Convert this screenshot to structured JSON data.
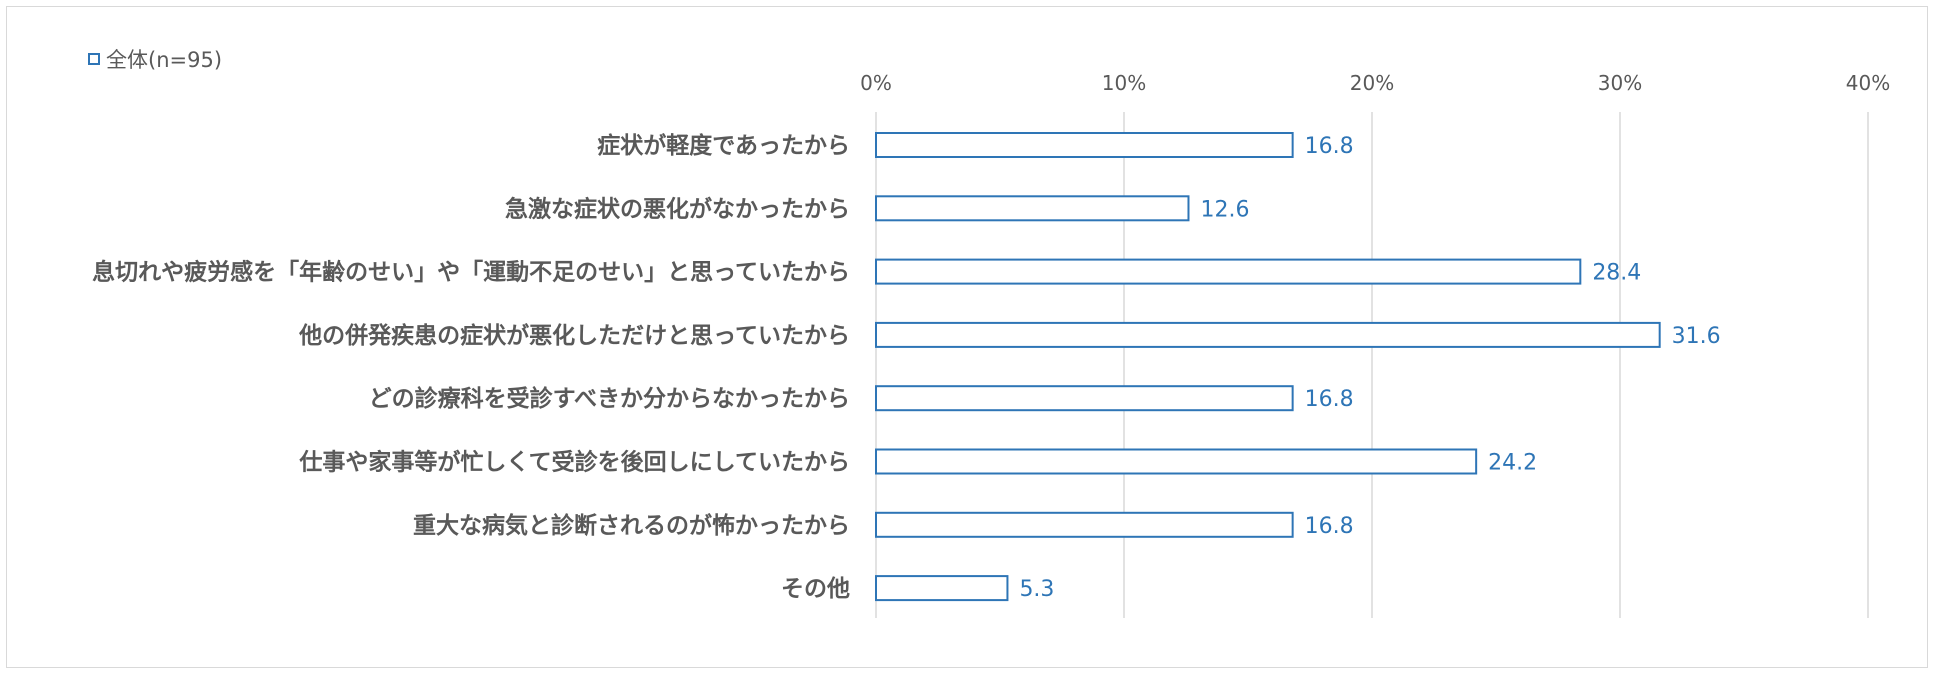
{
  "chart_data": {
    "type": "bar",
    "orientation": "horizontal",
    "legend": {
      "label": "全体(n=95)",
      "placement": "top-left"
    },
    "categories": [
      "症状が軽度であったから",
      "急激な症状の悪化がなかったから",
      "息切れや疲労感を「年齢のせい」や「運動不足のせい」と思っていたから",
      "他の併発疾患の症状が悪化しただけと思っていたから",
      "どの診療科を受診すべきか分からなかったから",
      "仕事や家事等が忙しくて受診を後回しにしていたから",
      "重大な病気と診断されるのが怖かったから",
      "その他"
    ],
    "series": [
      {
        "name": "全体(n=95)",
        "values": [
          16.8,
          12.6,
          28.4,
          31.6,
          16.8,
          24.2,
          16.8,
          5.3
        ]
      }
    ],
    "value_labels": [
      "16.8",
      "12.6",
      "28.4",
      "31.6",
      "16.8",
      "24.2",
      "16.8",
      "5.3"
    ],
    "xlim": [
      0,
      40
    ],
    "xticks": [
      "0%",
      "10%",
      "20%",
      "30%",
      "40%"
    ],
    "grid": true,
    "colors": {
      "bar_border": "#2e75b6",
      "bar_fill": "#ffffff",
      "value_label": "#2e75b6",
      "gridline": "#d9d9d9",
      "text": "#595959"
    }
  }
}
